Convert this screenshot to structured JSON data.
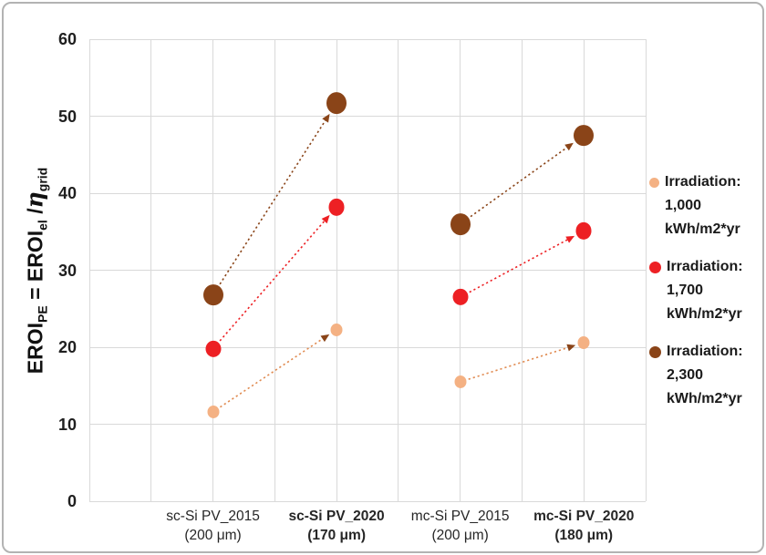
{
  "frame": {
    "border_color": "#b3b3b3",
    "background": "#ffffff"
  },
  "colors": {
    "gridline": "#d9d9d9",
    "axis_text": "#262626"
  },
  "y_axis_title_parts": [
    {
      "t": "EROI",
      "style": "normal"
    },
    {
      "t": "PE",
      "style": "sub"
    },
    {
      "t": " = EROI",
      "style": "normal"
    },
    {
      "t": "el",
      "style": "sub"
    },
    {
      "t": " /",
      "style": "normal"
    },
    {
      "t": "η",
      "style": "italic"
    },
    {
      "t": "grid",
      "style": "sub"
    }
  ],
  "chart_data": {
    "type": "scatter",
    "title": "",
    "xlabel": "",
    "ylabel": "EROI_PE = EROI_el / eta_grid",
    "ylim": [
      0,
      60
    ],
    "yticks": [
      0,
      10,
      20,
      30,
      40,
      50,
      60
    ],
    "grid": true,
    "x_divisions": 9,
    "category_x_slots": [
      2,
      4,
      6,
      8
    ],
    "legend_position": "right",
    "categories": [
      {
        "line1": "sc-Si PV_2015",
        "line2": "(200 μm)",
        "bold": false
      },
      {
        "line1": "sc-Si PV_2020",
        "line2": "(170 μm)",
        "bold": true
      },
      {
        "line1": "mc-Si PV_2015",
        "line2": "(200 μm)",
        "bold": false
      },
      {
        "line1": "mc-Si PV_2020",
        "line2": "(180 μm)",
        "bold": true
      }
    ],
    "series": [
      {
        "name": "Irradiation: 1,000 kWh/m2*yr",
        "legend_lines": [
          "Irradiation:",
          "1,000",
          "kWh/m2*yr"
        ],
        "color": "#F4B183",
        "arrow_line_color": "#E08A50",
        "arrow_head_color": "#8A4418",
        "marker_size": 13,
        "legend_marker_size": 11,
        "values": [
          11.6,
          22.3,
          15.5,
          20.6
        ]
      },
      {
        "name": "Irradiation: 1,700 kWh/m2*yr",
        "legend_lines": [
          "Irradiation:",
          "1,700",
          "kWh/m2*yr"
        ],
        "color": "#ED2024",
        "arrow_line_color": "#ED2024",
        "arrow_head_color": "#ED2024",
        "marker_size": 17,
        "legend_marker_size": 13,
        "values": [
          19.8,
          38.2,
          26.5,
          35.1
        ]
      },
      {
        "name": "Irradiation: 2,300 kWh/m2*yr",
        "legend_lines": [
          "Irradiation:",
          "2,300",
          "kWh/m2*yr"
        ],
        "color": "#8A4418",
        "arrow_line_color": "#8A4418",
        "arrow_head_color": "#8A4418",
        "marker_size": 22,
        "legend_marker_size": 13,
        "values": [
          26.8,
          51.7,
          36.0,
          47.5
        ]
      }
    ],
    "arrows": [
      {
        "series_index": 0,
        "from_category": 0,
        "to_category": 1
      },
      {
        "series_index": 0,
        "from_category": 2,
        "to_category": 3
      },
      {
        "series_index": 1,
        "from_category": 0,
        "to_category": 1
      },
      {
        "series_index": 1,
        "from_category": 2,
        "to_category": 3
      },
      {
        "series_index": 2,
        "from_category": 0,
        "to_category": 1
      },
      {
        "series_index": 2,
        "from_category": 2,
        "to_category": 3
      }
    ]
  }
}
